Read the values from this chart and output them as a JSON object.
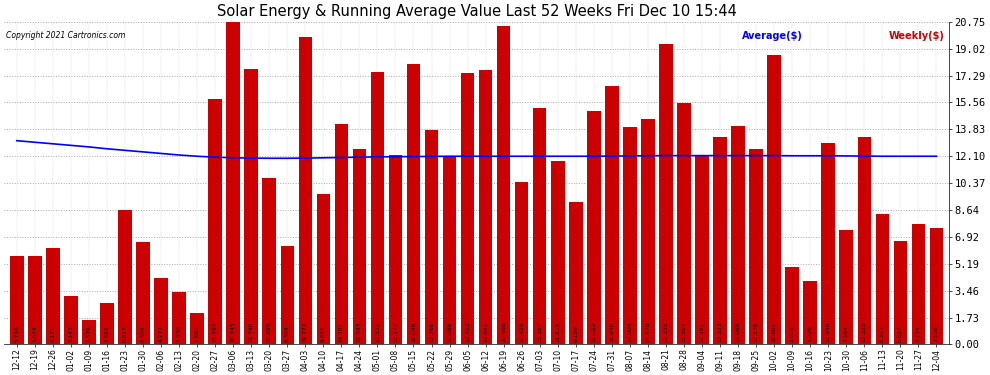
{
  "title": "Solar Energy & Running Average Value Last 52 Weeks Fri Dec 10 15:44",
  "copyright": "Copyright 2021 Cartronics.com",
  "bar_color": "#cc0000",
  "avg_line_color": "#0000ff",
  "legend_avg": "Average($)",
  "legend_weekly": "Weekly($)",
  "background_color": "#ffffff",
  "plot_bg_color": "#ffffff",
  "ylim": [
    0,
    20.75
  ],
  "yticks": [
    0.0,
    1.73,
    3.46,
    5.19,
    6.92,
    8.64,
    10.37,
    12.1,
    13.83,
    15.56,
    17.29,
    19.02,
    20.75
  ],
  "dates": [
    "12-12",
    "12-19",
    "12-26",
    "01-02",
    "01-09",
    "01-16",
    "01-23",
    "01-30",
    "02-06",
    "02-13",
    "02-20",
    "02-27",
    "03-06",
    "03-13",
    "03-20",
    "03-27",
    "04-03",
    "04-10",
    "04-17",
    "04-24",
    "05-01",
    "05-08",
    "05-15",
    "05-22",
    "05-29",
    "06-05",
    "06-12",
    "06-19",
    "06-26",
    "07-03",
    "07-10",
    "07-17",
    "07-24",
    "07-31",
    "08-07",
    "08-14",
    "08-21",
    "08-28",
    "09-04",
    "09-11",
    "09-18",
    "09-25",
    "10-02",
    "10-09",
    "10-16",
    "10-23",
    "10-30",
    "11-06",
    "11-13",
    "11-20",
    "11-27",
    "12-04"
  ],
  "values": [
    5.716,
    5.674,
    6.171,
    3.143,
    1.579,
    2.692,
    8.617,
    6.584,
    4.277,
    3.38,
    1.991,
    15.792,
    20.745,
    17.74,
    10.695,
    6.304,
    19.772,
    9.651,
    14.181,
    12.543,
    17.521,
    12.177,
    18.046,
    13.766,
    12.088,
    17.452,
    17.641,
    20.468,
    10.459,
    15.187,
    11.814,
    9.159,
    15.022,
    16.646,
    14.004,
    14.47,
    19.335,
    15.507,
    12.191,
    13.323,
    14.069,
    12.576,
    18.601,
    5.001,
    4.096,
    12.94,
    7.384,
    13.325,
    8.397,
    6.637,
    7.774,
    7.506
  ],
  "avg_values": [
    13.1,
    13.0,
    12.9,
    12.8,
    12.7,
    12.58,
    12.48,
    12.38,
    12.28,
    12.18,
    12.1,
    12.04,
    12.0,
    11.98,
    11.97,
    11.97,
    11.98,
    12.0,
    12.02,
    12.04,
    12.06,
    12.07,
    12.08,
    12.09,
    12.1,
    12.1,
    12.1,
    12.1,
    12.1,
    12.1,
    12.1,
    12.1,
    12.1,
    12.11,
    12.12,
    12.13,
    12.14,
    12.14,
    12.14,
    12.14,
    12.14,
    12.14,
    12.14,
    12.13,
    12.13,
    12.13,
    12.12,
    12.11,
    12.1,
    12.1,
    12.1,
    12.1
  ]
}
